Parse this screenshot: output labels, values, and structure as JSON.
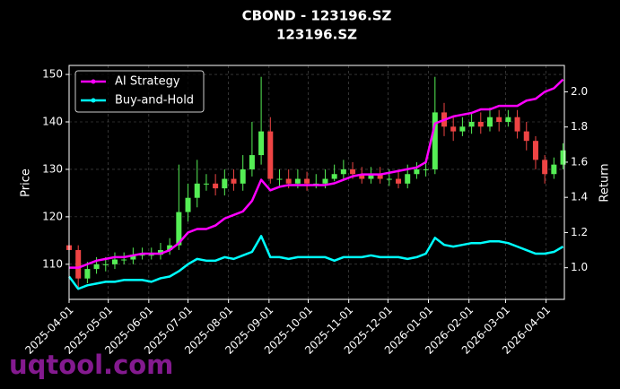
{
  "chart_data": {
    "type": "candlestick",
    "title": "CBOND - 123196.SZ",
    "subtitle": "123196.SZ",
    "y_label": "Price",
    "y2_label": "Return",
    "watermark": "uqtool.com",
    "grid": true,
    "legend": "upper left",
    "up_color": "#55ee55",
    "down_color": "#ee4444",
    "xlim": [
      "2025-04-01",
      "2026-04-15"
    ],
    "xticks": [
      "2025-04-01",
      "2025-05-01",
      "2025-06-01",
      "2025-07-01",
      "2025-08-01",
      "2025-09-01",
      "2025-10-01",
      "2025-11-01",
      "2025-12-01",
      "2026-01-01",
      "2026-02-01",
      "2026-03-01",
      "2026-04-01"
    ],
    "ylim": [
      102.6,
      151.9
    ],
    "yticks": [
      110,
      120,
      130,
      140,
      150
    ],
    "y2lim": [
      0.82,
      2.15
    ],
    "y2ticks": [
      {
        "value": 1,
        "label": "1.0"
      },
      1.2,
      1.4,
      1.6,
      1.8,
      {
        "value": 2,
        "label": "2.0"
      }
    ],
    "x": [
      "2025-04-01",
      "2025-04-08",
      "2025-04-15",
      "2025-04-22",
      "2025-04-29",
      "2025-05-06",
      "2025-05-13",
      "2025-05-20",
      "2025-05-27",
      "2025-06-03",
      "2025-06-10",
      "2025-06-17",
      "2025-06-24",
      "2025-07-01",
      "2025-07-08",
      "2025-07-15",
      "2025-07-22",
      "2025-07-29",
      "2025-08-05",
      "2025-08-12",
      "2025-08-19",
      "2025-08-26",
      "2025-09-02",
      "2025-09-09",
      "2025-09-16",
      "2025-09-23",
      "2025-09-30",
      "2025-10-07",
      "2025-10-14",
      "2025-10-21",
      "2025-10-28",
      "2025-11-04",
      "2025-11-11",
      "2025-11-18",
      "2025-11-25",
      "2025-12-02",
      "2025-12-09",
      "2025-12-16",
      "2025-12-23",
      "2025-12-30",
      "2026-01-06",
      "2026-01-13",
      "2026-01-20",
      "2026-01-27",
      "2026-02-03",
      "2026-02-10",
      "2026-02-17",
      "2026-02-24",
      "2026-03-03",
      "2026-03-10",
      "2026-03-17",
      "2026-03-24",
      "2026-03-31",
      "2026-04-07",
      "2026-04-14"
    ],
    "open": [
      114,
      113,
      107,
      109,
      110,
      110,
      111,
      111,
      112,
      112,
      112,
      113,
      114,
      121,
      124,
      127,
      127,
      126,
      128,
      127,
      130,
      133,
      138,
      128,
      128,
      127,
      128,
      127,
      127,
      128,
      129,
      130,
      129,
      128,
      129,
      128,
      128,
      127,
      129,
      130,
      130,
      142,
      139,
      138,
      139,
      140,
      139,
      141,
      140,
      141,
      138,
      136,
      132,
      129,
      131
    ],
    "high": [
      115.5,
      114,
      110.5,
      111.5,
      111.5,
      112.5,
      112.5,
      113.5,
      113.5,
      113.5,
      114.5,
      115.5,
      131,
      127,
      132,
      129,
      129,
      130,
      130,
      133,
      140,
      149.5,
      141,
      130,
      130,
      130,
      129.5,
      129,
      130,
      131,
      132,
      131.5,
      130.5,
      130.5,
      130.5,
      130,
      129.5,
      131,
      131.5,
      132,
      149.5,
      144,
      141,
      141,
      142,
      142,
      143,
      142.5,
      142.5,
      142.5,
      140,
      137,
      133,
      132.5,
      135.5
    ],
    "low": [
      112,
      105,
      106,
      108,
      108.5,
      109,
      110,
      110,
      111,
      111,
      111,
      112,
      113,
      119,
      122,
      125.5,
      124.5,
      124.5,
      125.5,
      125.5,
      128.5,
      131,
      127,
      126.5,
      126,
      126,
      125.5,
      126,
      126,
      127.5,
      128,
      128,
      127,
      127,
      127,
      126.5,
      126,
      126,
      128,
      128.5,
      129,
      137,
      136,
      137,
      137.5,
      137.5,
      138,
      138,
      139,
      136.5,
      134,
      130,
      127,
      128,
      130
    ],
    "close": [
      113,
      107,
      109,
      110,
      110,
      111,
      111,
      112,
      112,
      112,
      113,
      114,
      121,
      124,
      127,
      127,
      126,
      128,
      127,
      130,
      133,
      138,
      128,
      128,
      127,
      128,
      127,
      127,
      128,
      129,
      130,
      129,
      128,
      129,
      128,
      128,
      127,
      129,
      130,
      130,
      142,
      139,
      138,
      139,
      140,
      139,
      141,
      140,
      141,
      138,
      136,
      132,
      129,
      131,
      134
    ],
    "series": [
      {
        "name": "AI Strategy",
        "color": "#ff00ff",
        "axis": "y2",
        "values": [
          1.0,
          1.0,
          1.02,
          1.04,
          1.05,
          1.06,
          1.06,
          1.07,
          1.08,
          1.08,
          1.08,
          1.1,
          1.14,
          1.2,
          1.22,
          1.22,
          1.24,
          1.28,
          1.3,
          1.32,
          1.38,
          1.5,
          1.44,
          1.46,
          1.47,
          1.47,
          1.47,
          1.47,
          1.47,
          1.48,
          1.5,
          1.52,
          1.53,
          1.53,
          1.53,
          1.54,
          1.55,
          1.56,
          1.57,
          1.6,
          1.82,
          1.84,
          1.86,
          1.87,
          1.88,
          1.9,
          1.9,
          1.92,
          1.92,
          1.92,
          1.95,
          1.96,
          2.0,
          2.02,
          2.07
        ]
      },
      {
        "name": "Buy-and-Hold",
        "color": "#00ffff",
        "axis": "y2",
        "values": [
          0.95,
          0.88,
          0.9,
          0.91,
          0.92,
          0.92,
          0.93,
          0.93,
          0.93,
          0.92,
          0.94,
          0.95,
          0.98,
          1.02,
          1.05,
          1.04,
          1.04,
          1.06,
          1.05,
          1.07,
          1.09,
          1.18,
          1.06,
          1.06,
          1.05,
          1.06,
          1.06,
          1.06,
          1.06,
          1.04,
          1.06,
          1.06,
          1.06,
          1.07,
          1.06,
          1.06,
          1.06,
          1.05,
          1.06,
          1.08,
          1.17,
          1.13,
          1.12,
          1.13,
          1.14,
          1.14,
          1.15,
          1.15,
          1.14,
          1.12,
          1.1,
          1.08,
          1.08,
          1.09,
          1.12
        ]
      }
    ]
  }
}
